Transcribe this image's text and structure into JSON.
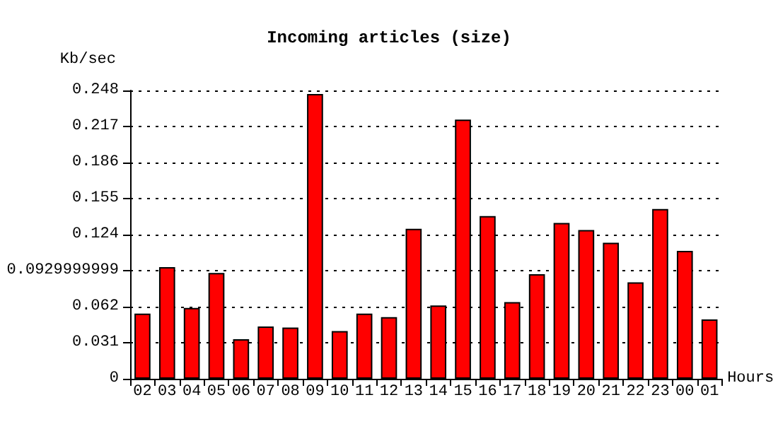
{
  "chart_data": {
    "type": "bar",
    "title": "Incoming articles (size)",
    "ylabel": "Kb/sec",
    "xlabel": "Hours",
    "categories": [
      "02",
      "03",
      "04",
      "05",
      "06",
      "07",
      "08",
      "09",
      "10",
      "11",
      "12",
      "13",
      "14",
      "15",
      "16",
      "17",
      "18",
      "19",
      "20",
      "21",
      "22",
      "23",
      "00",
      "01"
    ],
    "values": [
      0.056,
      0.096,
      0.061,
      0.091,
      0.034,
      0.045,
      0.044,
      0.245,
      0.041,
      0.056,
      0.053,
      0.129,
      0.063,
      0.223,
      0.14,
      0.066,
      0.09,
      0.134,
      0.128,
      0.117,
      0.083,
      0.146,
      0.11,
      0.051
    ],
    "color": "#ff0000",
    "ylim": [
      0,
      0.248
    ],
    "yticks": [
      0,
      0.031,
      0.062,
      0.0929999999,
      0.124,
      0.155,
      0.186,
      0.217,
      0.248
    ],
    "grid": "y"
  }
}
